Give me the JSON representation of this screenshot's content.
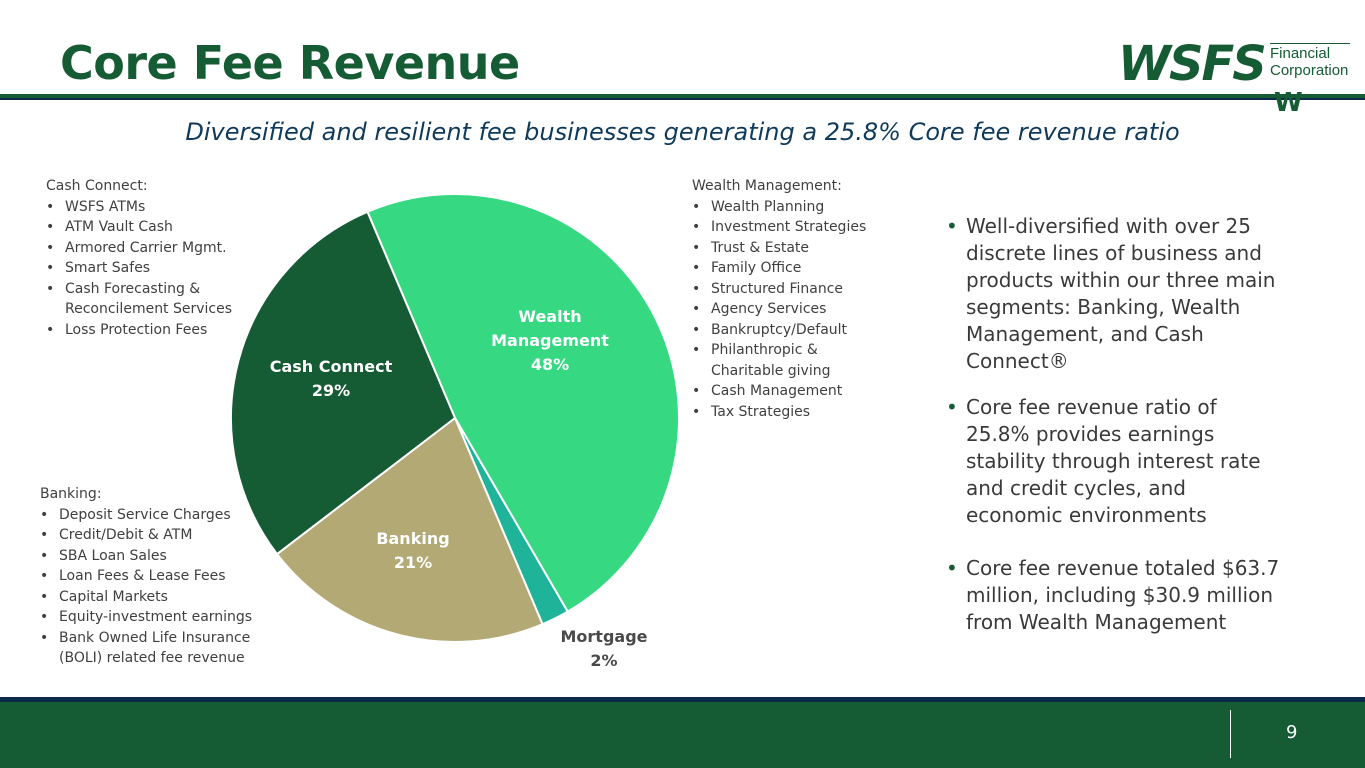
{
  "page": {
    "title": "Core Fee Revenue",
    "subtitle": "Diversified and resilient fee businesses generating a 25.8% Core fee revenue ratio",
    "page_number": "9"
  },
  "logo": {
    "main": "WSFS",
    "line1": "Financial",
    "line2": "Corporation",
    "mark": "W"
  },
  "lists": {
    "cash_connect": {
      "heading": "Cash Connect:",
      "items": [
        "WSFS ATMs",
        "ATM Vault Cash",
        "Armored Carrier Mgmt.",
        "Smart Safes",
        "Cash Forecasting &",
        "Loss Protection Fees"
      ],
      "cont": "Reconcilement Services"
    },
    "banking": {
      "heading": "Banking:",
      "items": [
        "Deposit Service Charges",
        "Credit/Debit & ATM",
        "SBA Loan Sales",
        "Loan Fees & Lease Fees",
        "Capital Markets",
        "Equity-investment earnings",
        "Bank Owned Life Insurance"
      ],
      "cont": "(BOLI) related fee revenue"
    },
    "wealth": {
      "heading": "Wealth Management:",
      "items": [
        "Wealth Planning",
        "Investment Strategies",
        "Trust & Estate",
        "Family Office",
        "Structured Finance",
        "Agency Services",
        "Bankruptcy/Default",
        "Philanthropic &",
        "Cash Management",
        "Tax Strategies"
      ],
      "cont": "Charitable giving"
    }
  },
  "bullets": [
    "Well-diversified with over 25 discrete lines of business and products within our three main segments: Banking, Wealth Management, and Cash Connect®",
    "Core fee revenue ratio of 25.8% provides earnings stability through interest rate and credit cycles, and economic environments",
    "Core fee revenue totaled $63.7 million, including $30.9 million from Wealth Management"
  ],
  "chart_data": {
    "type": "pie",
    "slices": [
      {
        "name": "Wealth Management",
        "label_lines": [
          "Wealth",
          "Management",
          "48%"
        ],
        "value": 48,
        "color": "#36d982"
      },
      {
        "name": "Mortgage",
        "label_lines": [
          "Mortgage",
          "2%"
        ],
        "value": 2,
        "color": "#1fb39a"
      },
      {
        "name": "Banking",
        "label_lines": [
          "Banking",
          "21%"
        ],
        "value": 21,
        "color": "#b2a975"
      },
      {
        "name": "Cash Connect",
        "label_lines": [
          "Cash Connect",
          "29%"
        ],
        "value": 29,
        "color": "#155b34"
      }
    ]
  },
  "colors": {
    "brand_green": "#155b34",
    "navy": "#0b2a4a"
  }
}
